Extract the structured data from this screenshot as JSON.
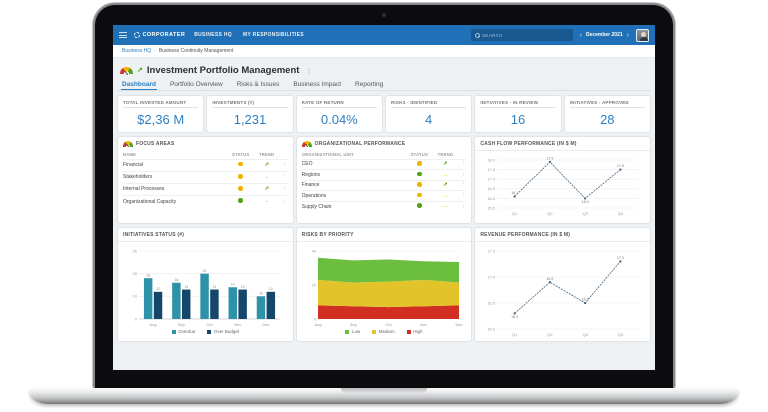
{
  "topbar": {
    "logo": "CORPORATER",
    "nav": [
      "BUSINESS HQ",
      "MY RESPONSIBILITIES"
    ],
    "search_placeholder": "SEARCH",
    "date_selector": {
      "prev": "‹",
      "label": "December 2021",
      "next": "›"
    }
  },
  "breadcrumb": {
    "items": [
      "Business HQ",
      "Business Continuity Management"
    ],
    "separator": "›"
  },
  "page": {
    "title": "Investment Portfolio Management",
    "menu_icon": "⋮"
  },
  "tabs": [
    {
      "label": "Dashboard",
      "active": true
    },
    {
      "label": "Portfolio Overview",
      "active": false
    },
    {
      "label": "Risks & Issues",
      "active": false
    },
    {
      "label": "Business Impact",
      "active": false
    },
    {
      "label": "Reporting",
      "active": false
    }
  ],
  "kpis": [
    {
      "label": "TOTAL INVESTED AMOUNT",
      "value": "$2,36 M"
    },
    {
      "label": "INVESTMENTS (#)",
      "value": "1,231"
    },
    {
      "label": "RATE OF RETURN",
      "value": "0.04%"
    },
    {
      "label": "RISKS - IDENTIFIED",
      "value": "4"
    },
    {
      "label": "INITIATIVES - IN REVIEW",
      "value": "16"
    },
    {
      "label": "INITIATIVES - APPROVED",
      "value": "28"
    }
  ],
  "focus_areas": {
    "title": "FOCUS AREAS",
    "columns": [
      "NAME",
      "STATUS",
      "TREND"
    ],
    "rows": [
      {
        "name": "Financial",
        "status": "yellow",
        "trend": "up"
      },
      {
        "name": "Stakeholders",
        "status": "yellow",
        "trend": "flat"
      },
      {
        "name": "Internal Processes",
        "status": "yellow",
        "trend": "up"
      },
      {
        "name": "Organizational Capacity",
        "status": "green",
        "trend": "flat"
      }
    ]
  },
  "org_performance": {
    "title": "ORGANIZATIONAL PERFORMANCE",
    "columns": [
      "ORGANIZATIONAL UNIT",
      "STATUS",
      "TREND"
    ],
    "rows": [
      {
        "name": "CEO",
        "status": "yellow",
        "trend": "up"
      },
      {
        "name": "Regions",
        "status": "green",
        "trend": "flat"
      },
      {
        "name": "Finance",
        "status": "yellow",
        "trend": "up"
      },
      {
        "name": "Operations",
        "status": "yellow",
        "trend": "flat"
      },
      {
        "name": "Supply Chain",
        "status": "green",
        "trend": "flat"
      }
    ]
  },
  "chart_data": [
    {
      "id": "cashflow",
      "type": "line",
      "title": "CASH FLOW PERFORMANCE (IN $ M)",
      "categories": [
        "Q1",
        "Q2",
        "Q3",
        "Q4"
      ],
      "values": [
        16.1,
        17.9,
        16.0,
        17.5
      ],
      "ylim": [
        15.5,
        18.0
      ],
      "yticks": [
        "15.5",
        "16.0",
        "16.5",
        "17.0",
        "17.5",
        "18.0"
      ],
      "color": "#46627C",
      "grid": true
    },
    {
      "id": "initiatives",
      "type": "bar",
      "title": "INITIATIVES STATUS (#)",
      "categories": [
        "Aug",
        "Sep",
        "Oct",
        "Nov",
        "Dec"
      ],
      "series": [
        {
          "name": "Overdue",
          "color": "#2E93A8",
          "values": [
            18,
            16,
            20,
            14,
            10
          ]
        },
        {
          "name": "Over Budget",
          "color": "#15476B",
          "values": [
            12,
            13,
            13,
            13,
            12
          ]
        }
      ],
      "ylim": [
        0,
        30
      ],
      "yticks": [
        "0",
        "10",
        "20",
        "30"
      ],
      "legend": [
        {
          "label": "Overdue",
          "color": "#2E93A8"
        },
        {
          "label": "Over Budget",
          "color": "#15476B"
        }
      ],
      "legend_position": "bottom",
      "grid": true
    },
    {
      "id": "risks",
      "type": "area",
      "title": "RISKS BY PRIORITY",
      "categories": [
        "Aug",
        "Sep",
        "Oct",
        "Nov",
        "Dec"
      ],
      "series": [
        {
          "name": "High",
          "color": "#D12F21",
          "values": [
            8,
            7.5,
            7,
            7.5,
            8
          ]
        },
        {
          "name": "Medium",
          "color": "#E2C42A",
          "values": [
            15,
            14,
            15,
            15.5,
            13.5
          ]
        },
        {
          "name": "Low",
          "color": "#6CBE3F",
          "values": [
            13,
            13,
            13,
            11,
            12
          ]
        }
      ],
      "ylim": [
        0,
        40
      ],
      "yticks": [
        "0",
        "20",
        "40"
      ],
      "legend": [
        {
          "label": "Low",
          "color": "#6CBE3F"
        },
        {
          "label": "Medium",
          "color": "#E2C42A"
        },
        {
          "label": "High",
          "color": "#D12F21"
        }
      ],
      "legend_position": "bottom",
      "grid": true
    },
    {
      "id": "revenue",
      "type": "line",
      "title": "REVENUE PERFORMANCE (IN $ M)",
      "categories": [
        "Q1",
        "Q2",
        "Q3",
        "Q4"
      ],
      "values": [
        16.3,
        16.9,
        16.5,
        17.3
      ],
      "ylim": [
        16.0,
        17.5
      ],
      "yticks": [
        "16.0",
        "16.5",
        "17.0",
        "17.5"
      ],
      "color": "#46627C",
      "grid": true
    }
  ],
  "colors": {
    "brand_blue": "#1F70B6",
    "accent_blue": "#2F80C3",
    "status_green": "#53A318",
    "status_yellow": "#F0B400",
    "trend_up_glyph": "↗",
    "trend_flat_glyph": "→",
    "row_menu_glyph": "⋮"
  }
}
